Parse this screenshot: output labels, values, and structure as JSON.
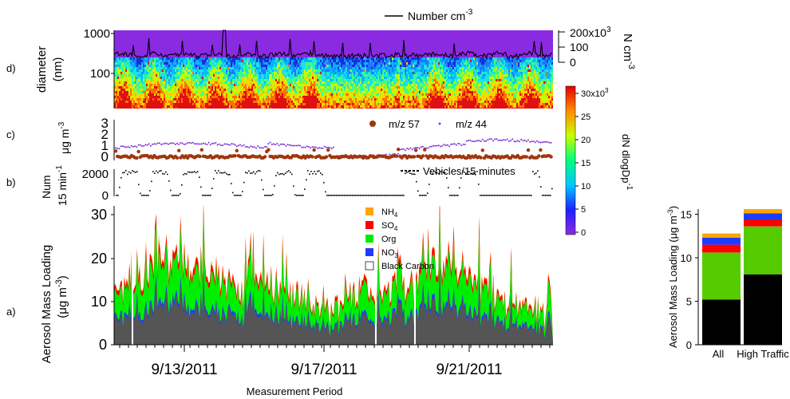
{
  "panels": {
    "d": {
      "letter": "d)",
      "ylabel": "diameter",
      "ylabel_unit": "(nm)",
      "yticks": [
        "1000",
        "100"
      ],
      "right_axis_label": "N cm",
      "right_axis_label_sup": "-3",
      "right_ticks": [
        {
          "label": "200x10",
          "sup": "3"
        },
        {
          "label": "100",
          "sup": ""
        },
        {
          "label": "0",
          "sup": ""
        }
      ],
      "legend_label": "Number cm",
      "legend_label_sup": "-3",
      "heat_bg_color": "#8a2be2"
    },
    "c": {
      "letter": "c)",
      "ylabel": "μg m",
      "ylabel_sup": "-3",
      "yticks": [
        "3",
        "2",
        "1",
        "0"
      ],
      "legend": [
        {
          "name": "m/z 57",
          "color": "#a0360e",
          "marker": "circle"
        },
        {
          "name": "m/z 44",
          "color": "#7a2ad0",
          "marker": "dot"
        }
      ]
    },
    "b": {
      "letter": "b)",
      "ylabel_1": "Num",
      "ylabel_2": "15 min",
      "ylabel_2_sup": "-1",
      "yticks": [
        "2000",
        "0"
      ],
      "legend_label": "Vehicles/15 minutes"
    },
    "a": {
      "letter": "a)",
      "ylabel_1": "Aerosol Mass Loading",
      "ylabel_2": "(μg m",
      "ylabel_2_sup": "-3",
      "ylabel_2_end": ")",
      "yticks": [
        "30",
        "20",
        "10",
        "0"
      ],
      "legend": [
        {
          "base": "NH",
          "sub": "4",
          "color": "#ffa500"
        },
        {
          "base": "SO",
          "sub": "4",
          "color": "#ff0000"
        },
        {
          "base": "Org",
          "sub": "",
          "color": "#00ee00"
        },
        {
          "base": "NO",
          "sub": "3",
          "color": "#1e3cff"
        },
        {
          "base": "Black Carbon",
          "sub": "",
          "color": "#ffffff",
          "outline": "#444444"
        }
      ],
      "xticks": [
        "9/13/2011",
        "9/17/2011",
        "9/21/2011"
      ],
      "xlabel": "Measurement Period"
    }
  },
  "colorbar": {
    "ticks": [
      {
        "label": "30x10",
        "sup": "3"
      },
      {
        "label": "25",
        "sup": ""
      },
      {
        "label": "20",
        "sup": ""
      },
      {
        "label": "15",
        "sup": ""
      },
      {
        "label": "10",
        "sup": ""
      },
      {
        "label": "5",
        "sup": ""
      },
      {
        "label": "0",
        "sup": ""
      }
    ],
    "label": "dN dlogDp",
    "label_sup": "-1",
    "stops": [
      "#8a2be2",
      "#2020ff",
      "#00c8ff",
      "#00ff80",
      "#c8ff00",
      "#ff8c00",
      "#e00000"
    ]
  },
  "chart_data": [
    {
      "type": "heatmap",
      "panel": "d",
      "description_axis": "diameter (nm), log scale",
      "ylim": [
        15,
        1000
      ],
      "yscale": "log",
      "color_range": [
        0,
        30000
      ],
      "xlim_days": [
        "9/10/2011",
        "9/24/2011"
      ]
    },
    {
      "type": "line",
      "panel": "d-overlay",
      "series": [
        {
          "name": "Number cm-3",
          "approx_baseline": 30000,
          "approx_peak": 200000
        }
      ]
    },
    {
      "type": "scatter",
      "panel": "c",
      "ylim": [
        0,
        3
      ],
      "series": [
        {
          "name": "m/z 57",
          "approx_range": [
            0.1,
            1.5
          ]
        },
        {
          "name": "m/z 44",
          "approx_range": [
            0.5,
            2.2
          ]
        }
      ]
    },
    {
      "type": "line",
      "panel": "b",
      "ylim": [
        0,
        2000
      ],
      "series": [
        {
          "name": "Vehicles/15 minutes",
          "approx_peak": 1900
        }
      ]
    },
    {
      "type": "area",
      "panel": "a",
      "ylim": [
        0,
        30
      ],
      "xticks": [
        "9/13/2011",
        "9/17/2011",
        "9/21/2011"
      ],
      "xlabel": "Measurement Period",
      "stack_order": [
        "Black Carbon",
        "NO3",
        "Org",
        "SO4",
        "NH4"
      ],
      "approx_total_range": [
        0,
        32
      ]
    },
    {
      "type": "bar",
      "panel": "summary",
      "ylabel": "Aerosol Mass Loading (μg m-3)",
      "ylim": [
        0,
        16
      ],
      "yticks": [
        "15",
        "10",
        "5",
        "0"
      ],
      "categories": [
        "All",
        "High Traffic"
      ],
      "series": [
        {
          "name": "Black Carbon",
          "color": "#000000",
          "values": [
            5.2,
            8.1
          ]
        },
        {
          "name": "Org",
          "color": "#55cc00",
          "values": [
            5.4,
            5.5
          ]
        },
        {
          "name": "SO4",
          "color": "#ff0000",
          "values": [
            0.9,
            0.8
          ]
        },
        {
          "name": "NO3",
          "color": "#1e3cff",
          "values": [
            0.8,
            0.7
          ]
        },
        {
          "name": "NH4",
          "color": "#ffa500",
          "values": [
            0.5,
            0.5
          ]
        }
      ]
    }
  ]
}
